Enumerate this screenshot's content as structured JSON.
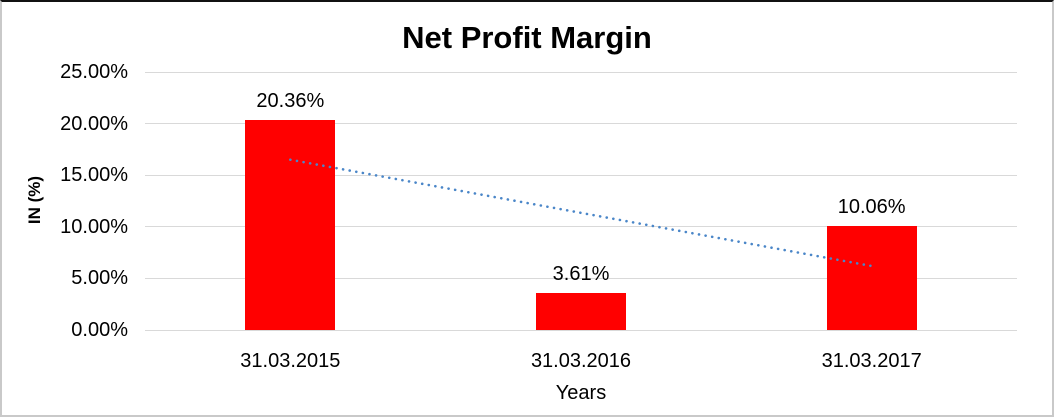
{
  "chart_data": {
    "type": "bar",
    "title": "Net Profit Margin",
    "xlabel": "Years",
    "ylabel": "IN (%)",
    "categories": [
      "31.03.2015",
      "31.03.2016",
      "31.03.2017"
    ],
    "values": [
      20.36,
      3.61,
      10.06
    ],
    "data_labels": [
      "20.36%",
      "3.61%",
      "10.06%"
    ],
    "ylim": [
      0,
      25
    ],
    "yticks": [
      {
        "value": 0,
        "label": "0.00%"
      },
      {
        "value": 5,
        "label": "5.00%"
      },
      {
        "value": 10,
        "label": "10.00%"
      },
      {
        "value": 15,
        "label": "15.00%"
      },
      {
        "value": 20,
        "label": "20.00%"
      },
      {
        "value": 25,
        "label": "25.00%"
      }
    ],
    "grid": true,
    "legend": "none",
    "bar_color": "#ff0000",
    "gridline_color": "#d9d9d9",
    "trendline": {
      "type": "linear",
      "style": "dotted",
      "color": "#4a86c8",
      "start_value": 16.5,
      "end_value": 6.2
    }
  }
}
